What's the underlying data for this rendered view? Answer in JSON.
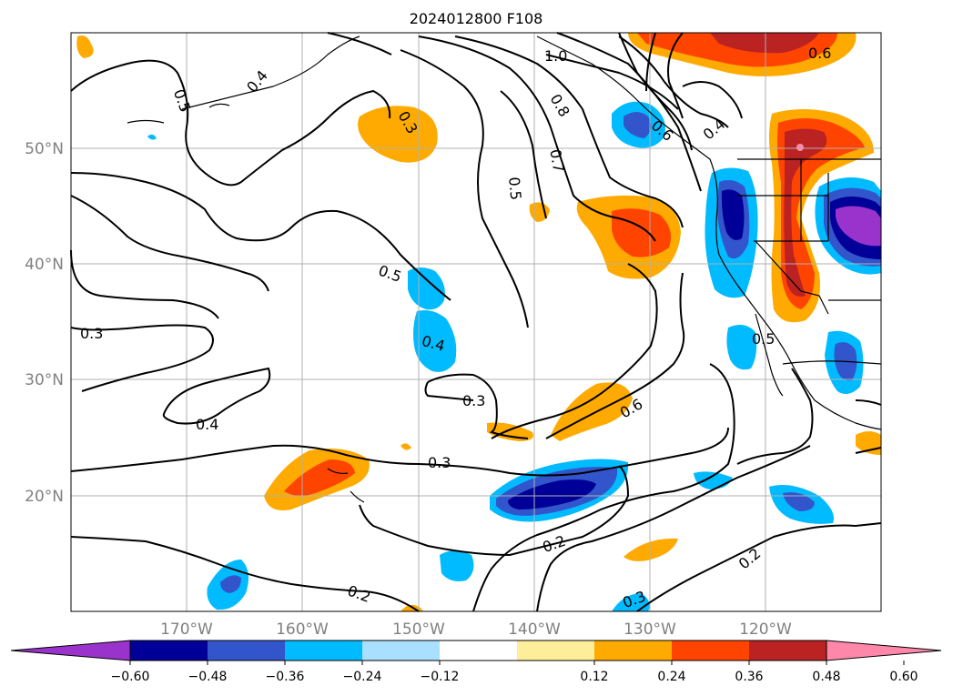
{
  "title": "2024012800 F108",
  "map": {
    "lat_labels": [
      "50°N",
      "40°N",
      "30°N",
      "20°N"
    ],
    "lon_labels": [
      "170°W",
      "160°W",
      "150°W",
      "140°W",
      "130°W",
      "120°W"
    ],
    "contour_labels": [
      "1.0",
      "0.8",
      "0.7",
      "0.6",
      "0.5",
      "0.5",
      "0.4",
      "0.4",
      "0.3",
      "0.3",
      "0.3",
      "0.2",
      "0.2",
      "0.2",
      "0.6",
      "0.4",
      "0.5",
      "0.3"
    ]
  },
  "colorbar": {
    "tick_labels": [
      "−0.60",
      "−0.48",
      "−0.36",
      "−0.24",
      "−0.12",
      "0.12",
      "0.24",
      "0.36",
      "0.48",
      "0.60"
    ],
    "colors": [
      "#9933cc",
      "#000099",
      "#3355cc",
      "#00bbff",
      "#aae0ff",
      "#ffffff",
      "#ffee99",
      "#ffaa00",
      "#ff4400",
      "#bb2222",
      "#ff88aa"
    ]
  }
}
